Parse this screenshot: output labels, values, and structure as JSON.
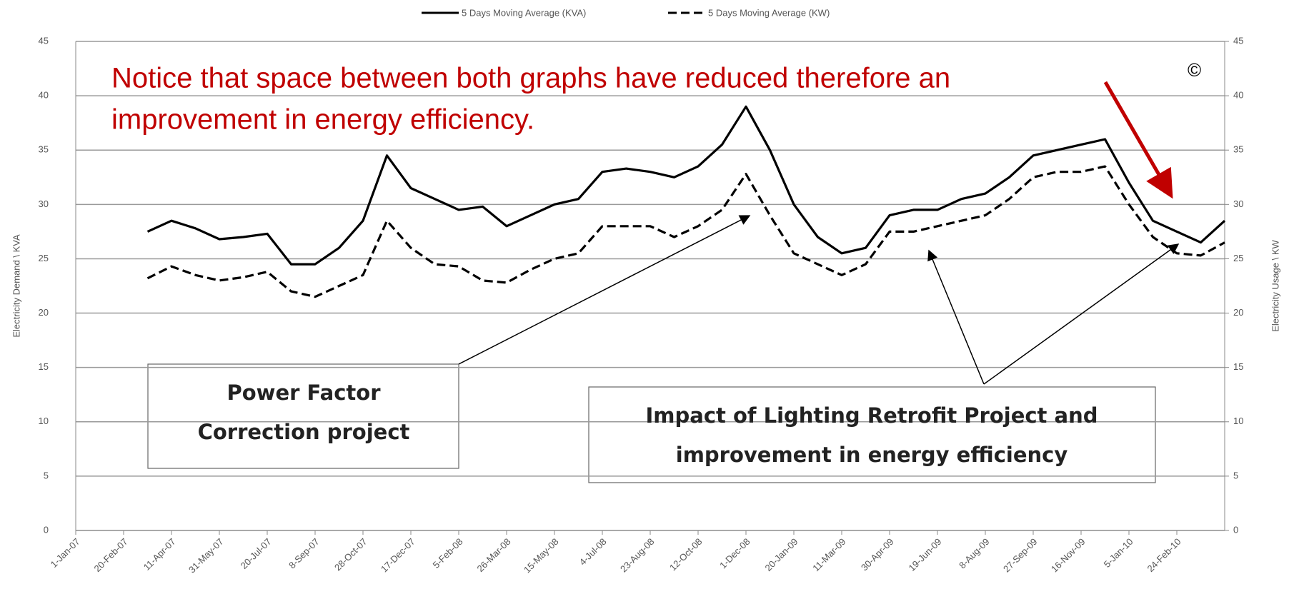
{
  "chart_data": {
    "type": "line",
    "y_label": "Electricity Demand \\ KVA",
    "y2_label": "Electricity Usage \\ KW",
    "categories": [
      "1-Jan-07",
      null,
      "20-Feb-07",
      null,
      "11-Apr-07",
      null,
      "31-May-07",
      null,
      "20-Jul-07",
      null,
      "8-Sep-07",
      null,
      "28-Oct-07",
      null,
      "17-Dec-07",
      null,
      "5-Feb-08",
      null,
      "26-Mar-08",
      null,
      "15-May-08",
      null,
      "4-Jul-08",
      null,
      "23-Aug-08",
      null,
      "12-Oct-08",
      null,
      "1-Dec-08",
      null,
      "20-Jan-09",
      null,
      "11-Mar-09",
      null,
      "30-Apr-09",
      null,
      "19-Jun-09",
      null,
      "8-Aug-09",
      null,
      "27-Sep-09",
      null,
      "16-Nov-09",
      null,
      "5-Jan-10",
      null,
      "24-Feb-10",
      null,
      null
    ],
    "series": [
      {
        "name": "5 Days Moving Average (KVA)",
        "color": "#000000",
        "style": "solid",
        "values": [
          null,
          null,
          null,
          27.5,
          28.5,
          27.8,
          26.8,
          27,
          27.3,
          24.5,
          24.5,
          26,
          28.5,
          34.5,
          31.5,
          30.5,
          29.5,
          29.8,
          28,
          29,
          30,
          30.5,
          33,
          33.3,
          33,
          32.5,
          33.5,
          35.5,
          39,
          35,
          30,
          27,
          25.5,
          26,
          29,
          29.5,
          29.5,
          30.5,
          31,
          32.5,
          34.5,
          35,
          35.5,
          36,
          32,
          28.5,
          27.5,
          26.5,
          28.5
        ]
      },
      {
        "name": "5 Days Moving Average (KW)",
        "color": "#000000",
        "style": "dashed",
        "axis": "y2",
        "values": [
          null,
          null,
          null,
          23.2,
          24.3,
          23.5,
          23,
          23.3,
          23.8,
          22,
          21.5,
          22.5,
          23.5,
          28.5,
          26,
          24.5,
          24.3,
          23,
          22.8,
          24,
          25,
          25.5,
          28,
          28,
          28,
          27,
          28,
          29.5,
          32.8,
          29,
          25.5,
          24.5,
          23.5,
          24.5,
          27.5,
          27.5,
          28,
          28.5,
          29,
          30.5,
          32.5,
          33,
          33,
          33.5,
          30,
          27,
          25.5,
          25.3,
          26.5
        ]
      }
    ],
    "ylim": [
      0,
      45
    ],
    "yticks": [
      0,
      5,
      10,
      15,
      20,
      25,
      30,
      35,
      40,
      45
    ],
    "y2lim": [
      0,
      45
    ],
    "y2ticks": [
      0,
      5,
      10,
      15,
      20,
      25,
      30,
      35,
      40,
      45
    ],
    "grid": true,
    "legend": "top",
    "annotations": {
      "note": {
        "lines": [
          "Notice that space between both graphs have reduced therefore an",
          "improvement in energy efficiency."
        ],
        "color": "#c00000"
      },
      "copyright": "©",
      "power_factor": {
        "lines": [
          "Power Factor",
          "Correction project"
        ]
      },
      "lighting": {
        "lines": [
          "Impact of Lighting Retrofit Project and",
          "improvement in energy efficiency"
        ]
      }
    }
  }
}
